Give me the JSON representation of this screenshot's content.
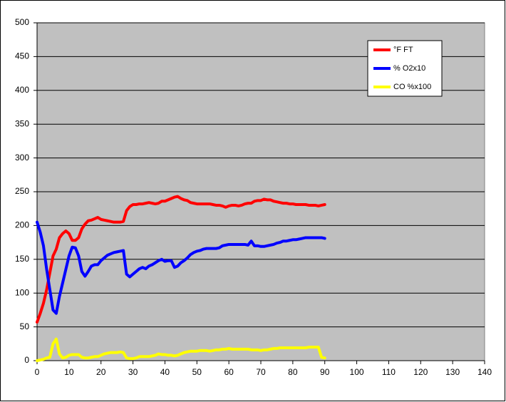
{
  "chart_data": {
    "type": "line",
    "x": [
      0,
      1,
      2,
      3,
      4,
      5,
      6,
      7,
      8,
      9,
      10,
      11,
      12,
      13,
      14,
      15,
      16,
      17,
      18,
      19,
      20,
      21,
      22,
      23,
      24,
      25,
      26,
      27,
      28,
      29,
      30,
      31,
      32,
      33,
      34,
      35,
      36,
      37,
      38,
      39,
      40,
      41,
      42,
      43,
      44,
      45,
      46,
      47,
      48,
      49,
      50,
      51,
      52,
      53,
      54,
      55,
      56,
      57,
      58,
      59,
      60,
      61,
      62,
      63,
      64,
      65,
      66,
      67,
      68,
      69,
      70,
      71,
      72,
      73,
      74,
      75,
      76,
      77,
      78,
      79,
      80,
      81,
      82,
      83,
      84,
      85,
      86,
      87,
      88,
      89,
      90
    ],
    "series": [
      {
        "name": "°F FT",
        "color": "#ff0000",
        "values": [
          57,
          70,
          85,
          105,
          130,
          155,
          165,
          182,
          188,
          192,
          188,
          178,
          178,
          182,
          195,
          202,
          207,
          208,
          210,
          212,
          209,
          208,
          207,
          206,
          205,
          205,
          205,
          206,
          222,
          228,
          231,
          231,
          232,
          232,
          233,
          234,
          233,
          232,
          233,
          236,
          236,
          238,
          240,
          242,
          243,
          240,
          238,
          237,
          234,
          233,
          232,
          232,
          232,
          232,
          232,
          231,
          230,
          230,
          229,
          227,
          229,
          230,
          230,
          229,
          230,
          232,
          233,
          233,
          236,
          237,
          237,
          239,
          238,
          238,
          236,
          235,
          234,
          233,
          233,
          232,
          232,
          231,
          231,
          231,
          231,
          230,
          230,
          230,
          229,
          230,
          231
        ]
      },
      {
        "name": "% O2x10",
        "color": "#0000ff",
        "values": [
          205,
          190,
          170,
          135,
          105,
          75,
          70,
          95,
          115,
          135,
          155,
          168,
          167,
          155,
          132,
          125,
          132,
          140,
          142,
          142,
          148,
          152,
          156,
          158,
          160,
          161,
          162,
          163,
          128,
          124,
          128,
          132,
          136,
          138,
          136,
          140,
          142,
          145,
          148,
          150,
          147,
          148,
          148,
          138,
          140,
          145,
          148,
          152,
          157,
          160,
          162,
          163,
          165,
          166,
          166,
          166,
          166,
          167,
          170,
          171,
          172,
          172,
          172,
          172,
          172,
          172,
          171,
          177,
          170,
          170,
          169,
          169,
          170,
          171,
          172,
          174,
          175,
          177,
          177,
          178,
          179,
          179,
          180,
          181,
          182,
          182,
          182,
          182,
          182,
          182,
          181
        ]
      },
      {
        "name": "CO %x100",
        "color": "#ffff00",
        "values": [
          0,
          1,
          2,
          4,
          5,
          25,
          32,
          10,
          4,
          5,
          8,
          9,
          9,
          9,
          5,
          4,
          4,
          5,
          6,
          6,
          8,
          10,
          11,
          12,
          12,
          12,
          13,
          12,
          4,
          3,
          3,
          4,
          6,
          6,
          6,
          6,
          7,
          8,
          10,
          9,
          9,
          8,
          8,
          7,
          8,
          10,
          12,
          13,
          14,
          14,
          14,
          15,
          15,
          15,
          14,
          15,
          16,
          16,
          17,
          17,
          18,
          17,
          17,
          17,
          17,
          17,
          17,
          16,
          16,
          16,
          15,
          16,
          16,
          17,
          18,
          18,
          19,
          19,
          19,
          19,
          19,
          19,
          19,
          19,
          19,
          20,
          20,
          20,
          20,
          5,
          4
        ]
      }
    ],
    "xlim": [
      0,
      140
    ],
    "xticks": [
      0,
      10,
      20,
      30,
      40,
      50,
      60,
      70,
      80,
      90,
      100,
      110,
      120,
      130,
      140
    ],
    "ylim": [
      0,
      500
    ],
    "yticks": [
      0,
      50,
      100,
      150,
      200,
      250,
      300,
      350,
      400,
      450,
      500
    ],
    "grid": true,
    "legend": "upper right"
  }
}
